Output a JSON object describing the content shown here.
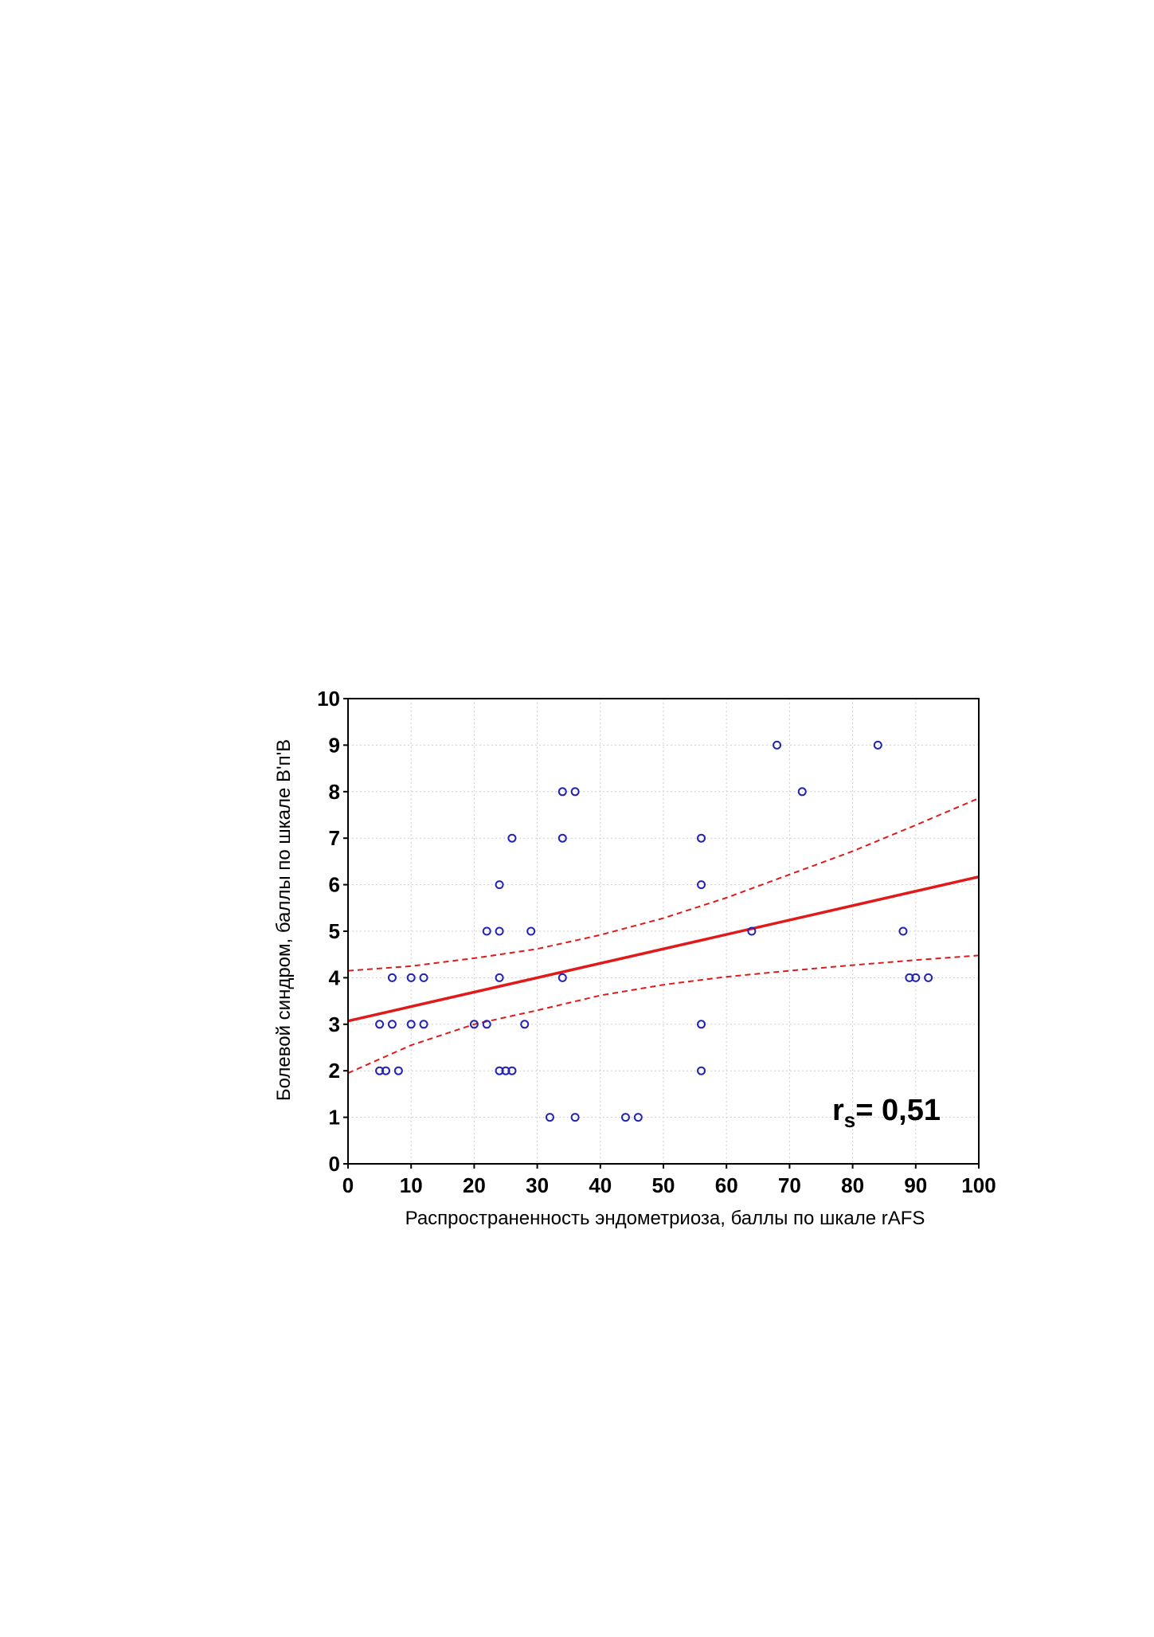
{
  "chart_data": {
    "type": "scatter",
    "title": "",
    "xlabel": "Распространенность эндометриоза, баллы по шкале rAFS",
    "ylabel": "Болевой синдром, баллы по шкале В'п'В",
    "xlim": [
      0,
      100
    ],
    "ylim": [
      0,
      10
    ],
    "x_ticks": [
      0,
      10,
      20,
      30,
      40,
      50,
      60,
      70,
      80,
      90,
      100
    ],
    "y_ticks": [
      0,
      1,
      2,
      3,
      4,
      5,
      6,
      7,
      8,
      9,
      10
    ],
    "grid": true,
    "legend": "none",
    "series": [
      {
        "points": [
          [
            5,
            2
          ],
          [
            6,
            2
          ],
          [
            8,
            2
          ],
          [
            5,
            3
          ],
          [
            7,
            3
          ],
          [
            10,
            3
          ],
          [
            12,
            3
          ],
          [
            7,
            4
          ],
          [
            10,
            4
          ],
          [
            12,
            4
          ],
          [
            20,
            3
          ],
          [
            22,
            3
          ],
          [
            22,
            5
          ],
          [
            24,
            5
          ],
          [
            24,
            4
          ],
          [
            24,
            6
          ],
          [
            26,
            7
          ],
          [
            24,
            2
          ],
          [
            25,
            2
          ],
          [
            26,
            2
          ],
          [
            28,
            3
          ],
          [
            29,
            5
          ],
          [
            32,
            1
          ],
          [
            36,
            1
          ],
          [
            34,
            8
          ],
          [
            36,
            8
          ],
          [
            34,
            7
          ],
          [
            34,
            4
          ],
          [
            44,
            1
          ],
          [
            46,
            1
          ],
          [
            56,
            7
          ],
          [
            56,
            6
          ],
          [
            56,
            3
          ],
          [
            56,
            2
          ],
          [
            64,
            5
          ],
          [
            68,
            9
          ],
          [
            72,
            8
          ],
          [
            84,
            9
          ],
          [
            88,
            5
          ],
          [
            89,
            4
          ],
          [
            90,
            4
          ],
          [
            92,
            4
          ]
        ]
      }
    ],
    "regression_line": {
      "intercept": 3.07,
      "slope": 0.031
    },
    "confidence_band": {
      "x": [
        0,
        10,
        20,
        30,
        40,
        50,
        60,
        70,
        80,
        90,
        100
      ],
      "upper": [
        4.15,
        4.25,
        4.42,
        4.62,
        4.92,
        5.28,
        5.72,
        6.22,
        6.72,
        7.28,
        7.86
      ],
      "lower": [
        1.95,
        2.55,
        3.0,
        3.3,
        3.62,
        3.85,
        4.02,
        4.15,
        4.27,
        4.38,
        4.48
      ]
    },
    "annotation": {
      "main": "r",
      "sub": "s",
      "rest": "= 0,51"
    },
    "colors": {
      "points": "#2323b4",
      "regression": "#e01a1a",
      "confidence": "#e01a1a",
      "grid": "#cfcfcf",
      "frame": "#000000"
    }
  }
}
